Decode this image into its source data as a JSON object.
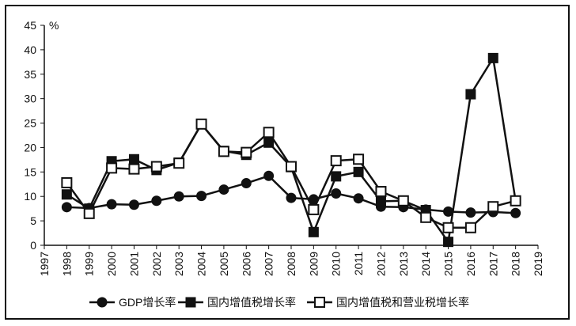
{
  "chart_data": {
    "type": "line",
    "unit_label": "%",
    "ylim": [
      0,
      45
    ],
    "yticks": [
      0,
      5,
      10,
      15,
      20,
      25,
      30,
      35,
      40,
      45
    ],
    "xlim": [
      1997,
      2019
    ],
    "xticks": [
      "1997",
      "1998",
      "1999",
      "2000",
      "2001",
      "2002",
      "2003",
      "2004",
      "2005",
      "2006",
      "2007",
      "2008",
      "2009",
      "2010",
      "2011",
      "2012",
      "2013",
      "2014",
      "2015",
      "2016",
      "2017",
      "2018",
      "2019"
    ],
    "x": [
      1998,
      1999,
      2000,
      2001,
      2002,
      2003,
      2004,
      2005,
      2006,
      2007,
      2008,
      2009,
      2010,
      2011,
      2012,
      2013,
      2014,
      2015,
      2016,
      2017,
      2018
    ],
    "legend_position": "bottom",
    "grid": false,
    "series": [
      {
        "name": "GDP增长率",
        "marker": "circle-filled",
        "values": [
          7.8,
          7.6,
          8.4,
          8.3,
          9.1,
          10.0,
          10.1,
          11.4,
          12.7,
          14.2,
          9.7,
          9.4,
          10.6,
          9.6,
          7.9,
          7.8,
          7.3,
          6.9,
          6.7,
          6.8,
          6.6
        ]
      },
      {
        "name": "国内增值税增长率",
        "marker": "square-filled",
        "values": [
          10.4,
          7.5,
          17.2,
          17.6,
          15.4,
          16.9,
          24.8,
          19.3,
          18.5,
          21.0,
          16.0,
          2.7,
          14.1,
          15.0,
          9.0,
          9.1,
          7.2,
          0.7,
          30.9,
          38.3,
          9.1
        ]
      },
      {
        "name": "国内增值税和营业税增长率",
        "marker": "square-open",
        "values": [
          12.8,
          6.5,
          15.8,
          15.6,
          16.1,
          16.8,
          24.8,
          19.2,
          19.0,
          23.1,
          16.1,
          7.3,
          17.3,
          17.6,
          11.0,
          9.1,
          5.7,
          3.6,
          3.6,
          7.9,
          9.1
        ]
      }
    ]
  }
}
